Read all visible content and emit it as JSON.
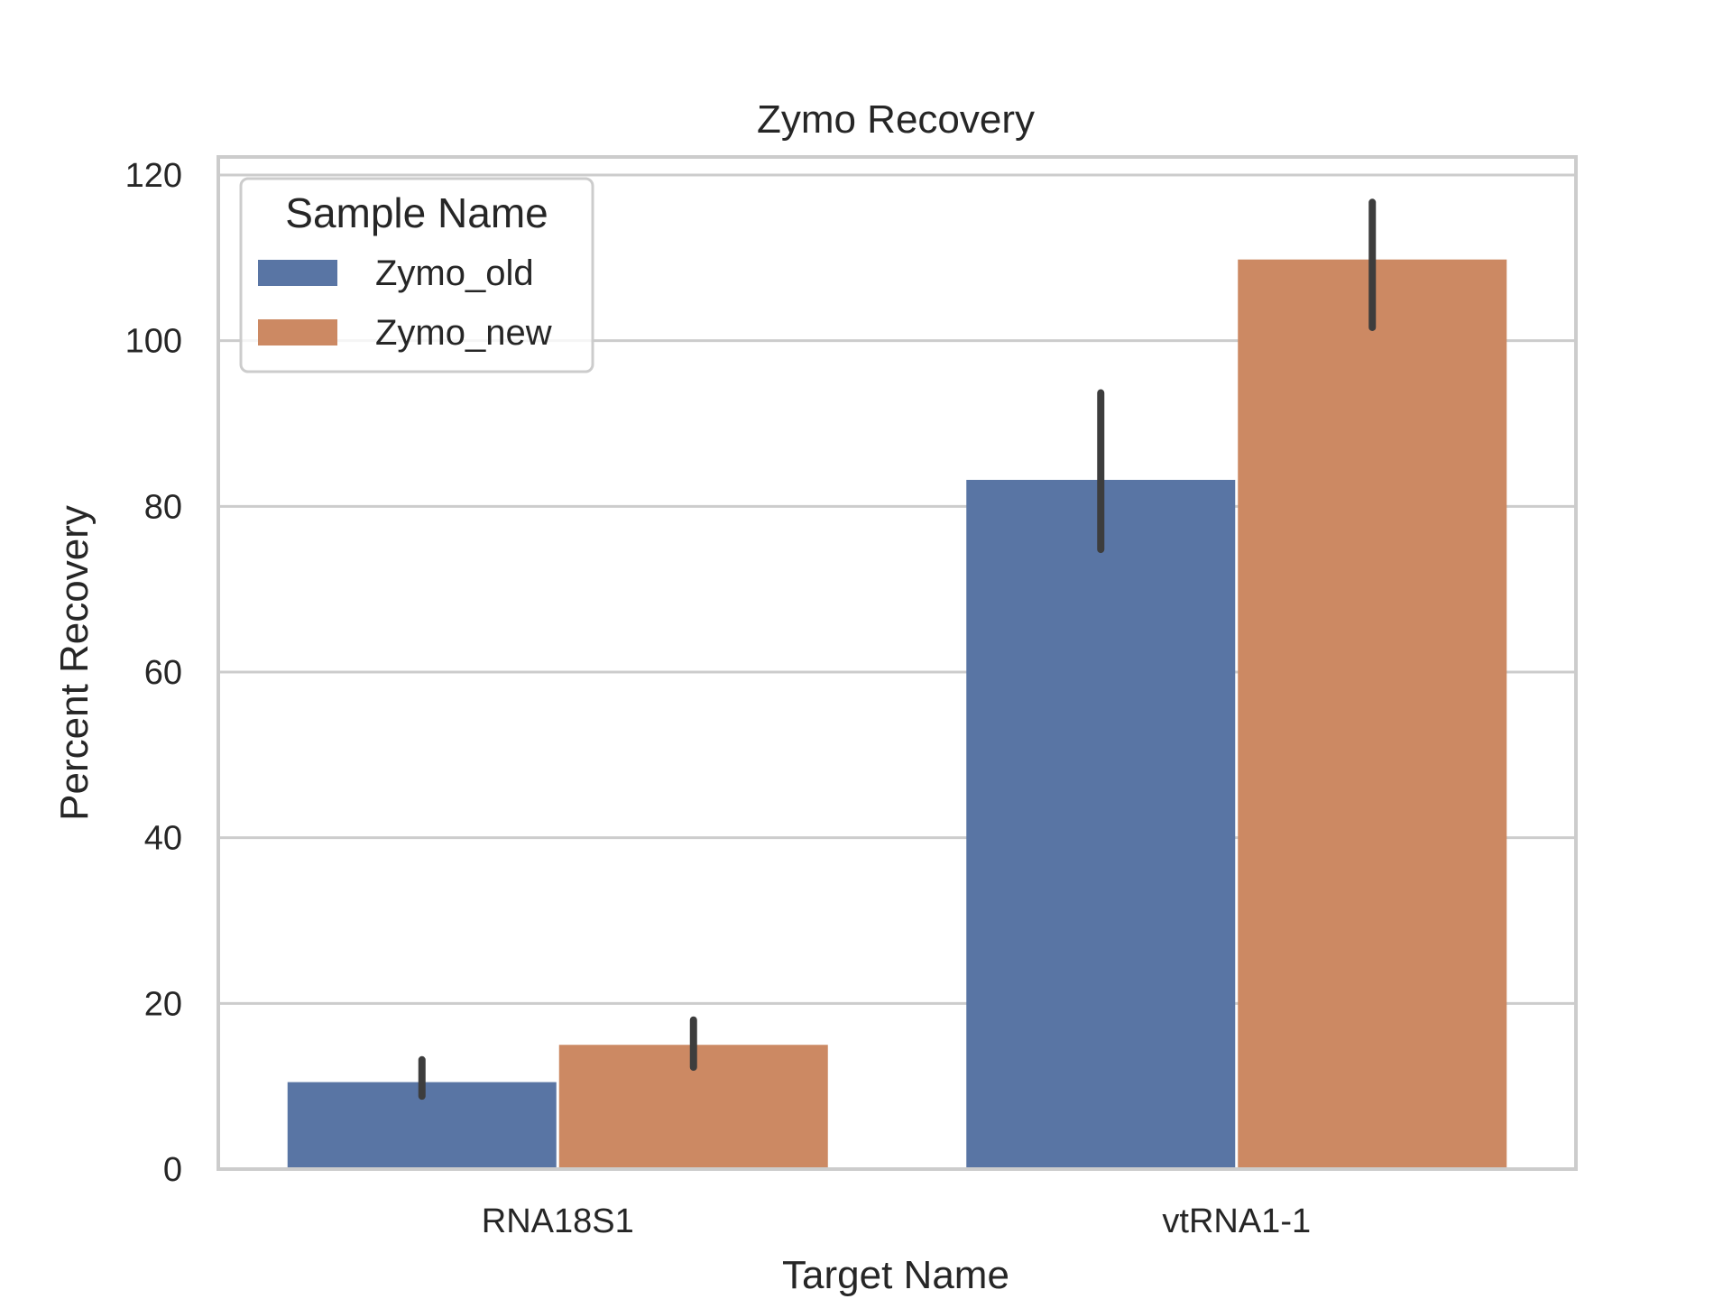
{
  "chart_data": {
    "type": "bar",
    "title": "Zymo Recovery",
    "xlabel": "Target Name",
    "ylabel": "Percent Recovery",
    "categories": [
      "RNA18S1",
      "vtRNA1-1"
    ],
    "series": [
      {
        "name": "Zymo_old",
        "color": "#5975a4",
        "values": [
          10.5,
          83.2
        ],
        "error_low": [
          8.8,
          74.8
        ],
        "error_high": [
          13.2,
          93.7
        ]
      },
      {
        "name": "Zymo_new",
        "color": "#cc8963",
        "values": [
          15.0,
          109.8
        ],
        "error_low": [
          12.3,
          101.6
        ],
        "error_high": [
          18.0,
          116.7
        ]
      }
    ],
    "ylim": [
      0,
      120
    ],
    "yticks": [
      0,
      20,
      40,
      60,
      80,
      100,
      120
    ],
    "grid": true,
    "legend": {
      "title": "Sample Name",
      "placement": "top-left"
    }
  }
}
